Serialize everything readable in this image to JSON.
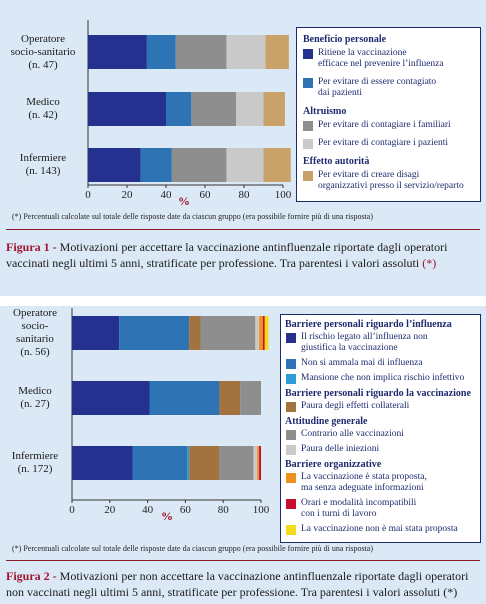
{
  "colors": {
    "navy": "#24318e",
    "blue": "#2e74b5",
    "lightblue": "#2f9bd6",
    "darkgray": "#8e8e8e",
    "lightgray": "#c9c9c9",
    "tan": "#c9a26a",
    "brown": "#a2733f",
    "orange": "#f0901e",
    "red": "#c8102e",
    "yellow": "#f3dc1a"
  },
  "figure1": {
    "caption_label": "Figura 1 -",
    "caption_text": "Motivazioni per accettare la vaccinazione antinfluenzale riportate dagli operatori vaccinati negli ultimi 5 anni, stratificate per professione. Tra parentesi i valori assoluti",
    "caption_star": "(*)",
    "footnote": "(*) Percentuali calcolate sul totale delle risposte date da ciascun gruppo (era possibile fornire più di una risposta)",
    "rows": [
      {
        "label": "Operatore\nsocio-sanitario\n(n. 47)"
      },
      {
        "label": "Medico\n(n. 42)"
      },
      {
        "label": "Infermiere\n(n. 143)"
      }
    ],
    "legend": [
      {
        "type": "head",
        "text": "Beneficio personale"
      },
      {
        "type": "item",
        "color": "#24318e",
        "text": "Ritiene la vaccinazione\nefficace nel prevenire l’influenza"
      },
      {
        "type": "item",
        "color": "#2e74b5",
        "text": "Per evitare di essere contagiato\ndai pazienti"
      },
      {
        "type": "head",
        "text": "Altruismo"
      },
      {
        "type": "item",
        "color": "#8e8e8e",
        "text": "Per evitare di contagiare i familiari"
      },
      {
        "type": "item",
        "color": "#c9c9c9",
        "text": "Per evitare di contagiare i pazienti"
      },
      {
        "type": "head",
        "text": "Effetto autorità"
      },
      {
        "type": "item",
        "color": "#c9a26a",
        "text": "Per evitare di creare disagi\norganizzativi presso il servizio/reparto"
      }
    ]
  },
  "figure2": {
    "caption_label": "Figura 2 -",
    "caption_text": "Motivazioni per non accettare la vaccinazione antinfluenzale riportate dagli operatori non vaccinati negli ultimi 5 anni, stratificate per professione. Tra parentesi i valori assoluti",
    "caption_star": "(*)",
    "footnote": "(*) Percentuali calcolate sul totale delle risposte date da ciascun gruppo (era possibile fornire più di una risposta)",
    "rows": [
      {
        "label": "Operatore\nsocio-\nsanitario\n(n. 56)"
      },
      {
        "label": "Medico\n(n. 27)"
      },
      {
        "label": "Infermiere\n(n. 172)"
      }
    ],
    "legend": [
      {
        "type": "head",
        "text": "Barriere personali riguardo l’influenza"
      },
      {
        "type": "item",
        "color": "#24318e",
        "text": "Il rischio legato all’influenza non\ngiustifica la vaccinazione"
      },
      {
        "type": "item",
        "color": "#2e74b5",
        "text": "Non si ammala mai di influenza"
      },
      {
        "type": "item",
        "color": "#2f9bd6",
        "text": "Mansione che non implica rischio infettivo"
      },
      {
        "type": "head",
        "text": "Barriere personali riguardo la vaccinazione"
      },
      {
        "type": "item",
        "color": "#a2733f",
        "text": "Paura degli effetti collaterali"
      },
      {
        "type": "head",
        "text": "Attitudine generale"
      },
      {
        "type": "item",
        "color": "#8e8e8e",
        "text": "Contrario alle vaccinazioni"
      },
      {
        "type": "item",
        "color": "#c9c9c9",
        "text": "Paura delle iniezioni"
      },
      {
        "type": "head",
        "text": "Barriere organizzative"
      },
      {
        "type": "item",
        "color": "#f0901e",
        "text": "La vaccinazione è stata proposta,\nma senza adeguate informazioni"
      },
      {
        "type": "item",
        "color": "#c8102e",
        "text": "Orari e modalità incompatibili\ncon i turni di lavoro"
      },
      {
        "type": "item",
        "color": "#f3dc1a",
        "text": "La vaccinazione non è mai stata proposta"
      }
    ]
  },
  "chart_data": [
    {
      "type": "bar",
      "orientation": "horizontal",
      "stacked": true,
      "categories": [
        "Operatore socio-sanitario (n. 47)",
        "Medico (n. 42)",
        "Infermiere (n. 143)"
      ],
      "xlabel": "%",
      "xlim": [
        0,
        100
      ],
      "xticks": [
        0,
        20,
        40,
        60,
        80,
        100
      ],
      "series": [
        {
          "name": "Ritiene la vaccinazione efficace nel prevenire l’influenza",
          "color": "#24318e",
          "values": [
            30,
            40,
            27
          ]
        },
        {
          "name": "Per evitare di essere contagiato dai pazienti",
          "color": "#2e74b5",
          "values": [
            15,
            13,
            16
          ]
        },
        {
          "name": "Per evitare di contagiare i familiari",
          "color": "#8e8e8e",
          "values": [
            26,
            23,
            28
          ]
        },
        {
          "name": "Per evitare di contagiare i pazienti",
          "color": "#c9c9c9",
          "values": [
            20,
            14,
            19
          ]
        },
        {
          "name": "Per evitare di creare disagi organizzativi presso il servizio/reparto",
          "color": "#c9a26a",
          "values": [
            12,
            11,
            14
          ]
        }
      ]
    },
    {
      "type": "bar",
      "orientation": "horizontal",
      "stacked": true,
      "categories": [
        "Operatore socio-sanitario (n. 56)",
        "Medico (n. 27)",
        "Infermiere (n. 172)"
      ],
      "xlabel": "%",
      "xlim": [
        0,
        100
      ],
      "xticks": [
        0,
        20,
        40,
        60,
        80,
        100
      ],
      "series": [
        {
          "name": "Il rischio legato all’influenza non giustifica la vaccinazione",
          "color": "#24318e",
          "values": [
            25,
            41,
            32
          ]
        },
        {
          "name": "Non si ammala mai di influenza",
          "color": "#2e74b5",
          "values": [
            37,
            37,
            29
          ]
        },
        {
          "name": "Mansione che non implica rischio infettivo",
          "color": "#2f9bd6",
          "values": [
            0,
            0,
            1
          ]
        },
        {
          "name": "Paura degli effetti collaterali",
          "color": "#a2733f",
          "values": [
            6,
            11,
            16
          ]
        },
        {
          "name": "Contrario alle vaccinazioni",
          "color": "#8e8e8e",
          "values": [
            29,
            11,
            18
          ]
        },
        {
          "name": "Paura delle iniezioni",
          "color": "#c9c9c9",
          "values": [
            2,
            0,
            2
          ]
        },
        {
          "name": "La vaccinazione è stata proposta, ma senza adeguate informazioni",
          "color": "#f0901e",
          "values": [
            2,
            0,
            1
          ]
        },
        {
          "name": "Orari e modalità incompatibili con i turni di lavoro",
          "color": "#c8102e",
          "values": [
            1,
            0,
            1
          ]
        },
        {
          "name": "La vaccinazione non è mai stata proposta",
          "color": "#f3dc1a",
          "values": [
            2,
            0,
            0
          ]
        }
      ]
    }
  ]
}
